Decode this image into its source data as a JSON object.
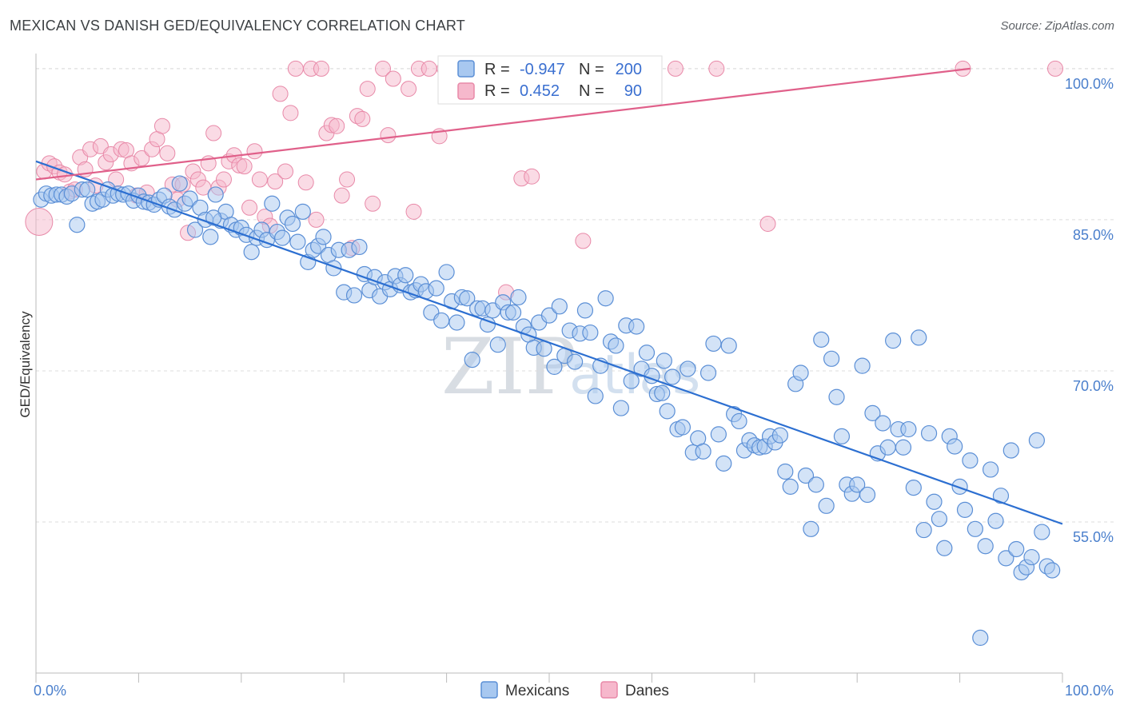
{
  "title": "MEXICAN VS DANISH GED/EQUIVALENCY CORRELATION CHART",
  "source": "Source: ZipAtlas.com",
  "watermark": {
    "zip": "ZIP",
    "atlas": "atlas"
  },
  "colors": {
    "mexicans_fill": "#a8c8f0",
    "mexicans_stroke": "#5b8fd6",
    "mexicans_line": "#2c6fd1",
    "danes_fill": "#f6b8cc",
    "danes_stroke": "#e889a8",
    "danes_line": "#e0608a",
    "tick_text": "#4a7fcc",
    "grid": "#dcdcdc"
  },
  "legend": {
    "r_label": "R =",
    "n_label": "N =",
    "mexicans_r": "-0.947",
    "mexicans_n": "200",
    "danes_r": "0.452",
    "danes_n": "90"
  },
  "bottom_legend": {
    "mexicans": "Mexicans",
    "danes": "Danes"
  },
  "chart_data": {
    "type": "scatter",
    "title": "MEXICAN VS DANISH GED/EQUIVALENCY CORRELATION CHART",
    "xlabel": "",
    "ylabel": "GED/Equivalency",
    "xlim": [
      0,
      100
    ],
    "ylim": [
      40,
      101.5
    ],
    "x_tick_labels": [
      "0.0%",
      "100.0%"
    ],
    "y_ticks": [
      55,
      70,
      85,
      100
    ],
    "y_tick_labels": [
      "55.0%",
      "70.0%",
      "85.0%",
      "100.0%"
    ],
    "series": [
      {
        "name": "Mexicans",
        "r": -0.947,
        "n": 200,
        "trend": {
          "x": [
            0,
            100
          ],
          "y": [
            90.8,
            54.8
          ]
        },
        "points": [
          [
            0.5,
            87.0
          ],
          [
            1,
            87.6
          ],
          [
            1.5,
            87.4
          ],
          [
            2,
            87.5
          ],
          [
            2.5,
            87.5
          ],
          [
            3,
            87.3
          ],
          [
            3.5,
            87.6
          ],
          [
            4,
            84.5
          ],
          [
            4.5,
            88.0
          ],
          [
            5,
            88.0
          ],
          [
            5.5,
            86.6
          ],
          [
            6,
            86.8
          ],
          [
            6.5,
            87.0
          ],
          [
            7,
            88.0
          ],
          [
            7.5,
            87.4
          ],
          [
            8,
            87.6
          ],
          [
            8.5,
            87.5
          ],
          [
            9,
            87.6
          ],
          [
            9.5,
            86.9
          ],
          [
            10,
            87.4
          ],
          [
            10.5,
            86.8
          ],
          [
            11,
            86.7
          ],
          [
            11.5,
            86.5
          ],
          [
            12,
            87.0
          ],
          [
            12.5,
            87.4
          ],
          [
            13,
            86.3
          ],
          [
            13.5,
            86.0
          ],
          [
            14,
            88.6
          ],
          [
            14.5,
            86.6
          ],
          [
            15,
            87.1
          ],
          [
            15.5,
            84.0
          ],
          [
            16,
            86.2
          ],
          [
            16.5,
            85.0
          ],
          [
            17,
            83.3
          ],
          [
            17.5,
            87.5
          ],
          [
            18,
            84.9
          ],
          [
            18.5,
            85.8
          ],
          [
            19,
            84.5
          ],
          [
            19.5,
            84.0
          ],
          [
            20,
            84.2
          ],
          [
            20.5,
            83.5
          ],
          [
            21,
            81.8
          ],
          [
            21.5,
            83.2
          ],
          [
            22,
            84.0
          ],
          [
            22.5,
            83.0
          ],
          [
            23,
            86.6
          ],
          [
            23.5,
            83.8
          ],
          [
            24,
            83.2
          ],
          [
            24.5,
            85.2
          ],
          [
            25,
            84.6
          ],
          [
            25.5,
            82.8
          ],
          [
            26,
            85.8
          ],
          [
            26.5,
            80.8
          ],
          [
            27,
            82.0
          ],
          [
            27.5,
            82.4
          ],
          [
            28,
            83.3
          ],
          [
            28.5,
            81.5
          ],
          [
            29,
            80.2
          ],
          [
            29.5,
            82.0
          ],
          [
            30,
            77.8
          ],
          [
            30.5,
            82.0
          ],
          [
            31,
            77.5
          ],
          [
            31.5,
            82.3
          ],
          [
            32,
            79.6
          ],
          [
            32.5,
            78.0
          ],
          [
            33,
            79.3
          ],
          [
            33.5,
            77.4
          ],
          [
            34,
            78.8
          ],
          [
            34.5,
            78.1
          ],
          [
            35,
            79.4
          ],
          [
            35.5,
            78.5
          ],
          [
            36,
            79.5
          ],
          [
            36.5,
            77.8
          ],
          [
            37,
            78.0
          ],
          [
            37.5,
            78.6
          ],
          [
            38,
            77.9
          ],
          [
            38.5,
            75.8
          ],
          [
            39,
            78.2
          ],
          [
            39.5,
            75.0
          ],
          [
            40,
            79.8
          ],
          [
            40.5,
            76.9
          ],
          [
            41,
            74.8
          ],
          [
            41.5,
            77.3
          ],
          [
            42,
            77.2
          ],
          [
            42.5,
            71.1
          ],
          [
            43,
            76.2
          ],
          [
            43.5,
            76.2
          ],
          [
            44,
            74.6
          ],
          [
            44.5,
            76.0
          ],
          [
            45,
            72.6
          ],
          [
            45.5,
            76.8
          ],
          [
            46,
            75.8
          ],
          [
            46.5,
            75.8
          ],
          [
            47,
            77.3
          ],
          [
            47.5,
            74.4
          ],
          [
            48,
            73.6
          ],
          [
            48.5,
            72.3
          ],
          [
            49,
            74.8
          ],
          [
            49.5,
            72.2
          ],
          [
            50,
            75.5
          ],
          [
            50.5,
            70.4
          ],
          [
            51,
            76.4
          ],
          [
            51.5,
            71.5
          ],
          [
            52,
            74.0
          ],
          [
            52.5,
            70.9
          ],
          [
            53,
            73.7
          ],
          [
            53.5,
            76.0
          ],
          [
            54,
            73.8
          ],
          [
            54.5,
            67.5
          ],
          [
            55,
            70.5
          ],
          [
            55.5,
            77.2
          ],
          [
            56,
            72.9
          ],
          [
            56.5,
            72.5
          ],
          [
            57,
            66.3
          ],
          [
            57.5,
            74.5
          ],
          [
            58,
            69.0
          ],
          [
            58.5,
            74.4
          ],
          [
            59,
            70.2
          ],
          [
            59.5,
            71.8
          ],
          [
            60,
            69.5
          ],
          [
            60.5,
            67.7
          ],
          [
            61,
            67.8
          ],
          [
            61.5,
            66.0
          ],
          [
            62,
            69.4
          ],
          [
            62.5,
            64.2
          ],
          [
            63,
            64.4
          ],
          [
            63.5,
            70.2
          ],
          [
            64,
            61.9
          ],
          [
            64.5,
            63.3
          ],
          [
            65,
            62.0
          ],
          [
            65.5,
            69.8
          ],
          [
            66,
            72.7
          ],
          [
            66.5,
            63.7
          ],
          [
            67,
            60.8
          ],
          [
            67.5,
            72.5
          ],
          [
            68,
            65.7
          ],
          [
            68.5,
            65.0
          ],
          [
            69,
            62.1
          ],
          [
            69.5,
            63.1
          ],
          [
            70,
            62.6
          ],
          [
            70.5,
            62.4
          ],
          [
            71,
            62.5
          ],
          [
            71.5,
            63.5
          ],
          [
            72,
            62.9
          ],
          [
            72.5,
            63.6
          ],
          [
            73,
            60.0
          ],
          [
            73.5,
            58.5
          ],
          [
            74,
            68.7
          ],
          [
            74.5,
            69.8
          ],
          [
            75,
            59.6
          ],
          [
            75.5,
            54.3
          ],
          [
            76,
            58.7
          ],
          [
            76.5,
            73.1
          ],
          [
            77,
            56.6
          ],
          [
            77.5,
            71.2
          ],
          [
            78,
            67.4
          ],
          [
            78.5,
            63.5
          ],
          [
            79,
            58.7
          ],
          [
            79.5,
            57.8
          ],
          [
            80,
            58.7
          ],
          [
            80.5,
            70.5
          ],
          [
            81,
            57.7
          ],
          [
            81.5,
            65.8
          ],
          [
            82,
            61.8
          ],
          [
            82.5,
            64.8
          ],
          [
            83,
            62.4
          ],
          [
            83.5,
            73.0
          ],
          [
            84,
            64.2
          ],
          [
            84.5,
            62.4
          ],
          [
            85,
            64.2
          ],
          [
            85.5,
            58.4
          ],
          [
            86,
            73.3
          ],
          [
            86.5,
            54.2
          ],
          [
            87,
            63.8
          ],
          [
            87.5,
            57.0
          ],
          [
            88,
            55.3
          ],
          [
            88.5,
            52.4
          ],
          [
            89,
            63.5
          ],
          [
            89.5,
            62.5
          ],
          [
            90,
            58.5
          ],
          [
            90.5,
            56.2
          ],
          [
            91,
            61.1
          ],
          [
            91.5,
            54.3
          ],
          [
            92,
            43.5
          ],
          [
            92.5,
            52.6
          ],
          [
            93,
            60.2
          ],
          [
            93.5,
            55.1
          ],
          [
            94,
            57.6
          ],
          [
            94.5,
            51.4
          ],
          [
            95,
            62.1
          ],
          [
            95.5,
            52.3
          ],
          [
            96,
            50.0
          ],
          [
            96.5,
            50.5
          ],
          [
            97,
            51.5
          ],
          [
            97.5,
            63.1
          ],
          [
            98,
            54.0
          ],
          [
            98.5,
            50.6
          ],
          [
            99,
            50.2
          ],
          [
            61.2,
            71.0
          ],
          [
            17.3,
            85.2
          ]
        ]
      },
      {
        "name": "Danes",
        "r": 0.452,
        "n": 90,
        "trend": {
          "x": [
            0,
            91
          ],
          "y": [
            89.0,
            100.0
          ]
        },
        "points": [
          [
            0.3,
            84.8
          ],
          [
            0.8,
            89.8
          ],
          [
            1.3,
            90.6
          ],
          [
            1.8,
            90.3
          ],
          [
            2.3,
            89.7
          ],
          [
            2.8,
            89.5
          ],
          [
            3.3,
            87.8
          ],
          [
            3.8,
            88.0
          ],
          [
            4.3,
            91.2
          ],
          [
            4.8,
            90.0
          ],
          [
            5.3,
            92.0
          ],
          [
            5.8,
            88.4
          ],
          [
            6.3,
            92.3
          ],
          [
            6.8,
            90.7
          ],
          [
            7.3,
            91.5
          ],
          [
            7.8,
            89.0
          ],
          [
            8.3,
            92.0
          ],
          [
            8.8,
            91.9
          ],
          [
            9.3,
            90.6
          ],
          [
            9.8,
            87.4
          ],
          [
            10.3,
            91.1
          ],
          [
            10.8,
            87.7
          ],
          [
            11.3,
            92.0
          ],
          [
            11.8,
            93.0
          ],
          [
            12.3,
            94.3
          ],
          [
            12.8,
            91.6
          ],
          [
            13.3,
            88.5
          ],
          [
            13.8,
            87.0
          ],
          [
            14.3,
            88.5
          ],
          [
            14.8,
            83.7
          ],
          [
            15.3,
            89.8
          ],
          [
            15.8,
            89.0
          ],
          [
            16.3,
            88.2
          ],
          [
            16.8,
            90.6
          ],
          [
            17.3,
            93.6
          ],
          [
            17.8,
            88.2
          ],
          [
            18.3,
            89.0
          ],
          [
            18.8,
            90.8
          ],
          [
            19.3,
            91.4
          ],
          [
            19.8,
            90.4
          ],
          [
            20.3,
            90.3
          ],
          [
            20.8,
            86.2
          ],
          [
            21.3,
            91.8
          ],
          [
            21.8,
            89.0
          ],
          [
            22.3,
            85.3
          ],
          [
            22.8,
            84.4
          ],
          [
            23.3,
            88.8
          ],
          [
            23.8,
            97.5
          ],
          [
            24.3,
            89.8
          ],
          [
            24.8,
            95.6
          ],
          [
            25.3,
            100.0
          ],
          [
            26.3,
            88.7
          ],
          [
            26.8,
            100.0
          ],
          [
            27.3,
            85.0
          ],
          [
            27.8,
            100.0
          ],
          [
            28.3,
            93.6
          ],
          [
            28.8,
            94.4
          ],
          [
            29.3,
            94.3
          ],
          [
            29.8,
            87.4
          ],
          [
            30.3,
            89.0
          ],
          [
            30.8,
            82.2
          ],
          [
            31.3,
            95.3
          ],
          [
            31.8,
            95.0
          ],
          [
            32.3,
            98.0
          ],
          [
            32.8,
            86.6
          ],
          [
            33.8,
            100.0
          ],
          [
            34.3,
            93.4
          ],
          [
            34.8,
            99.0
          ],
          [
            36.3,
            98.0
          ],
          [
            36.8,
            85.8
          ],
          [
            37.3,
            100.0
          ],
          [
            38.3,
            100.0
          ],
          [
            39.3,
            93.3
          ],
          [
            39.8,
            100.0
          ],
          [
            42.3,
            100.0
          ],
          [
            44.3,
            100.0
          ],
          [
            45.8,
            77.8
          ],
          [
            47.3,
            89.1
          ],
          [
            48.3,
            89.3
          ],
          [
            49.3,
            100.0
          ],
          [
            50.3,
            100.0
          ],
          [
            53.3,
            82.9
          ],
          [
            54.3,
            100.0
          ],
          [
            56.8,
            100.0
          ],
          [
            59.3,
            100.0
          ],
          [
            62.3,
            100.0
          ],
          [
            66.3,
            100.0
          ],
          [
            71.3,
            84.6
          ],
          [
            90.3,
            100.0
          ],
          [
            99.3,
            100.0
          ]
        ]
      }
    ]
  }
}
